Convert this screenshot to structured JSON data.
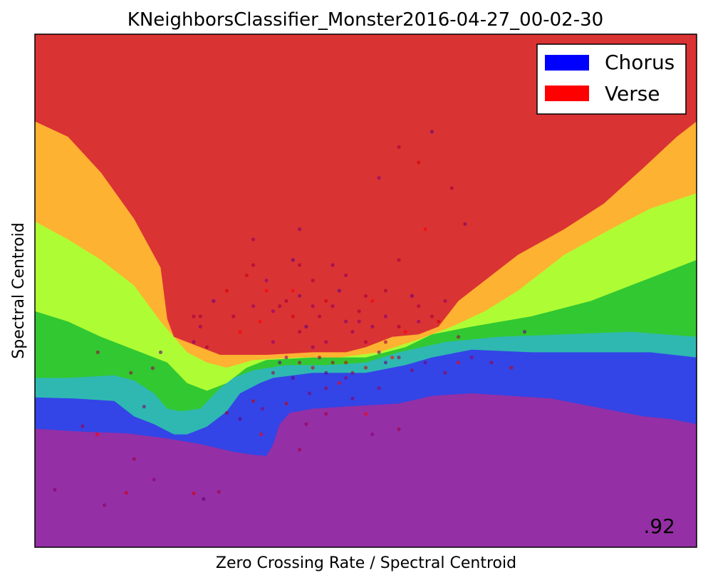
{
  "chart_data": {
    "type": "scatter",
    "title": "KNeighborsClassifier_Monster2016-04-27_00-02-30",
    "xlabel": "Zero Crossing Rate / Spectral Centroid",
    "ylabel": "Spectral Centroid",
    "xlim": [
      0,
      1
    ],
    "ylim": [
      0,
      1
    ],
    "ticks_visible": false,
    "grid": false,
    "legend_position": "top-right",
    "legend": [
      {
        "label": "Chorus",
        "color": "#0000ff"
      },
      {
        "label": "Verse",
        "color": "#ff0000"
      }
    ],
    "score_label": ".92",
    "decision_regions": {
      "colors": [
        "#952fa5",
        "#3345e6",
        "#2fb8b2",
        "#32c832",
        "#aefd34",
        "#feb231",
        "#da3333"
      ],
      "boundaries": [
        [
          [
            0,
            0.231
          ],
          [
            0.06,
            0.226
          ],
          [
            0.14,
            0.222
          ],
          [
            0.2,
            0.212
          ],
          [
            0.25,
            0.201
          ],
          [
            0.3,
            0.186
          ],
          [
            0.33,
            0.18
          ],
          [
            0.35,
            0.178
          ],
          [
            0.36,
            0.2
          ],
          [
            0.37,
            0.24
          ],
          [
            0.385,
            0.262
          ],
          [
            0.42,
            0.27
          ],
          [
            0.48,
            0.275
          ],
          [
            0.55,
            0.28
          ],
          [
            0.6,
            0.295
          ],
          [
            0.66,
            0.3
          ],
          [
            0.72,
            0.295
          ],
          [
            0.78,
            0.29
          ],
          [
            0.86,
            0.27
          ],
          [
            0.92,
            0.255
          ],
          [
            0.96,
            0.25
          ],
          [
            1,
            0.24
          ]
        ],
        [
          [
            0,
            0.292
          ],
          [
            0.06,
            0.29
          ],
          [
            0.12,
            0.285
          ],
          [
            0.15,
            0.255
          ],
          [
            0.18,
            0.24
          ],
          [
            0.21,
            0.22
          ],
          [
            0.23,
            0.22
          ],
          [
            0.26,
            0.235
          ],
          [
            0.29,
            0.265
          ],
          [
            0.31,
            0.3
          ],
          [
            0.34,
            0.32
          ],
          [
            0.36,
            0.33
          ],
          [
            0.42,
            0.34
          ],
          [
            0.5,
            0.34
          ],
          [
            0.56,
            0.355
          ],
          [
            0.6,
            0.37
          ],
          [
            0.66,
            0.385
          ],
          [
            0.75,
            0.38
          ],
          [
            0.85,
            0.38
          ],
          [
            0.93,
            0.38
          ],
          [
            1,
            0.37
          ]
        ],
        [
          [
            0,
            0.33
          ],
          [
            0.05,
            0.33
          ],
          [
            0.12,
            0.335
          ],
          [
            0.15,
            0.325
          ],
          [
            0.18,
            0.3
          ],
          [
            0.2,
            0.27
          ],
          [
            0.22,
            0.265
          ],
          [
            0.25,
            0.27
          ],
          [
            0.28,
            0.31
          ],
          [
            0.3,
            0.33
          ],
          [
            0.33,
            0.345
          ],
          [
            0.38,
            0.355
          ],
          [
            0.44,
            0.355
          ],
          [
            0.5,
            0.36
          ],
          [
            0.55,
            0.38
          ],
          [
            0.62,
            0.4
          ],
          [
            0.7,
            0.41
          ],
          [
            0.8,
            0.415
          ],
          [
            0.9,
            0.42
          ],
          [
            1,
            0.41
          ]
        ],
        [
          [
            0,
            0.46
          ],
          [
            0.05,
            0.44
          ],
          [
            0.1,
            0.41
          ],
          [
            0.15,
            0.385
          ],
          [
            0.2,
            0.36
          ],
          [
            0.23,
            0.32
          ],
          [
            0.26,
            0.305
          ],
          [
            0.29,
            0.32
          ],
          [
            0.32,
            0.35
          ],
          [
            0.35,
            0.365
          ],
          [
            0.42,
            0.37
          ],
          [
            0.5,
            0.37
          ],
          [
            0.56,
            0.39
          ],
          [
            0.6,
            0.415
          ],
          [
            0.66,
            0.43
          ],
          [
            0.75,
            0.45
          ],
          [
            0.84,
            0.48
          ],
          [
            0.92,
            0.52
          ],
          [
            1,
            0.56
          ]
        ],
        [
          [
            0,
            0.635
          ],
          [
            0.05,
            0.6
          ],
          [
            0.1,
            0.56
          ],
          [
            0.15,
            0.51
          ],
          [
            0.19,
            0.44
          ],
          [
            0.23,
            0.38
          ],
          [
            0.26,
            0.36
          ],
          [
            0.29,
            0.35
          ],
          [
            0.33,
            0.365
          ],
          [
            0.4,
            0.37
          ],
          [
            0.46,
            0.37
          ],
          [
            0.52,
            0.38
          ],
          [
            0.58,
            0.405
          ],
          [
            0.63,
            0.43
          ],
          [
            0.68,
            0.46
          ],
          [
            0.73,
            0.5
          ],
          [
            0.8,
            0.57
          ],
          [
            0.87,
            0.62
          ],
          [
            0.93,
            0.66
          ],
          [
            1,
            0.69
          ]
        ],
        [
          [
            0,
            0.83
          ],
          [
            0.05,
            0.8
          ],
          [
            0.1,
            0.73
          ],
          [
            0.15,
            0.64
          ],
          [
            0.19,
            0.545
          ],
          [
            0.2,
            0.445
          ],
          [
            0.21,
            0.41
          ],
          [
            0.25,
            0.39
          ],
          [
            0.28,
            0.375
          ],
          [
            0.35,
            0.375
          ],
          [
            0.42,
            0.38
          ],
          [
            0.47,
            0.38
          ],
          [
            0.5,
            0.39
          ],
          [
            0.54,
            0.41
          ],
          [
            0.58,
            0.415
          ],
          [
            0.61,
            0.43
          ],
          [
            0.64,
            0.48
          ],
          [
            0.68,
            0.52
          ],
          [
            0.73,
            0.57
          ],
          [
            0.8,
            0.62
          ],
          [
            0.86,
            0.67
          ],
          [
            0.92,
            0.74
          ],
          [
            0.97,
            0.8
          ],
          [
            1,
            0.83
          ]
        ]
      ]
    },
    "series": [
      {
        "points": [
          [
            0.24,
            0.105
          ],
          [
            0.255,
            0.094
          ],
          [
            0.278,
            0.108
          ],
          [
            0.105,
            0.082
          ],
          [
            0.03,
            0.112
          ],
          [
            0.072,
            0.236
          ],
          [
            0.094,
            0.22
          ],
          [
            0.18,
            0.132
          ],
          [
            0.15,
            0.172
          ],
          [
            0.138,
            0.106
          ],
          [
            0.19,
            0.38
          ],
          [
            0.145,
            0.34
          ],
          [
            0.178,
            0.349
          ],
          [
            0.165,
            0.274
          ],
          [
            0.095,
            0.38
          ],
          [
            0.342,
            0.22
          ],
          [
            0.344,
            0.27
          ],
          [
            0.29,
            0.262
          ],
          [
            0.33,
            0.285
          ],
          [
            0.39,
            0.33
          ],
          [
            0.4,
            0.19
          ],
          [
            0.41,
            0.24
          ],
          [
            0.415,
            0.3
          ],
          [
            0.44,
            0.31
          ],
          [
            0.46,
            0.32
          ],
          [
            0.47,
            0.33
          ],
          [
            0.48,
            0.34
          ],
          [
            0.5,
            0.35
          ],
          [
            0.53,
            0.36
          ],
          [
            0.55,
            0.37
          ],
          [
            0.57,
            0.345
          ],
          [
            0.59,
            0.36
          ],
          [
            0.62,
            0.34
          ],
          [
            0.64,
            0.36
          ],
          [
            0.66,
            0.37
          ],
          [
            0.69,
            0.36
          ],
          [
            0.72,
            0.35
          ],
          [
            0.74,
            0.42
          ],
          [
            0.64,
            0.41
          ],
          [
            0.52,
            0.31
          ],
          [
            0.48,
            0.29
          ],
          [
            0.44,
            0.26
          ],
          [
            0.5,
            0.26
          ],
          [
            0.51,
            0.22
          ],
          [
            0.55,
            0.23
          ],
          [
            0.38,
            0.28
          ],
          [
            0.31,
            0.25
          ],
          [
            0.36,
            0.34
          ],
          [
            0.44,
            0.4
          ],
          [
            0.42,
            0.39
          ],
          [
            0.4,
            0.42
          ],
          [
            0.34,
            0.44
          ],
          [
            0.36,
            0.46
          ],
          [
            0.37,
            0.47
          ],
          [
            0.39,
            0.45
          ],
          [
            0.41,
            0.43
          ],
          [
            0.43,
            0.45
          ],
          [
            0.45,
            0.47
          ],
          [
            0.47,
            0.44
          ],
          [
            0.49,
            0.46
          ],
          [
            0.51,
            0.48
          ],
          [
            0.53,
            0.45
          ],
          [
            0.55,
            0.43
          ],
          [
            0.44,
            0.48
          ],
          [
            0.46,
            0.5
          ],
          [
            0.5,
            0.49
          ],
          [
            0.42,
            0.47
          ],
          [
            0.4,
            0.49
          ],
          [
            0.38,
            0.48
          ],
          [
            0.35,
            0.5
          ],
          [
            0.33,
            0.47
          ],
          [
            0.3,
            0.45
          ],
          [
            0.29,
            0.5
          ],
          [
            0.27,
            0.48
          ],
          [
            0.24,
            0.45
          ],
          [
            0.25,
            0.43
          ],
          [
            0.24,
            0.4
          ],
          [
            0.26,
            0.39
          ],
          [
            0.31,
            0.42
          ],
          [
            0.36,
            0.4
          ],
          [
            0.43,
            0.37
          ],
          [
            0.47,
            0.36
          ],
          [
            0.44,
            0.34
          ],
          [
            0.45,
            0.36
          ],
          [
            0.49,
            0.44
          ],
          [
            0.51,
            0.43
          ],
          [
            0.53,
            0.4
          ],
          [
            0.56,
            0.42
          ],
          [
            0.58,
            0.44
          ],
          [
            0.6,
            0.45
          ],
          [
            0.61,
            0.44
          ],
          [
            0.57,
            0.49
          ],
          [
            0.53,
            0.5
          ],
          [
            0.47,
            0.53
          ],
          [
            0.45,
            0.55
          ],
          [
            0.4,
            0.55
          ],
          [
            0.39,
            0.5
          ],
          [
            0.35,
            0.52
          ],
          [
            0.33,
            0.55
          ],
          [
            0.32,
            0.53
          ],
          [
            0.39,
            0.56
          ],
          [
            0.42,
            0.52
          ],
          [
            0.48,
            0.42
          ],
          [
            0.52,
            0.38
          ],
          [
            0.5,
            0.4
          ],
          [
            0.54,
            0.37
          ],
          [
            0.38,
            0.37
          ],
          [
            0.4,
            0.36
          ],
          [
            0.42,
            0.35
          ],
          [
            0.37,
            0.36
          ],
          [
            0.58,
            0.47
          ],
          [
            0.62,
            0.48
          ],
          [
            0.65,
            0.63
          ],
          [
            0.55,
            0.56
          ],
          [
            0.59,
            0.62
          ],
          [
            0.52,
            0.72
          ],
          [
            0.55,
            0.78
          ],
          [
            0.58,
            0.75
          ],
          [
            0.6,
            0.81
          ],
          [
            0.63,
            0.7
          ],
          [
            0.33,
            0.6
          ],
          [
            0.4,
            0.62
          ],
          [
            0.25,
            0.45
          ]
        ],
        "colors": [
          "#d00000",
          "#600080",
          "#a00040",
          "#900060",
          "#800070",
          "#a00040",
          "#ff0000",
          "#8c0078",
          "#a00040"
        ],
        "alpha": 0.6
      }
    ]
  }
}
